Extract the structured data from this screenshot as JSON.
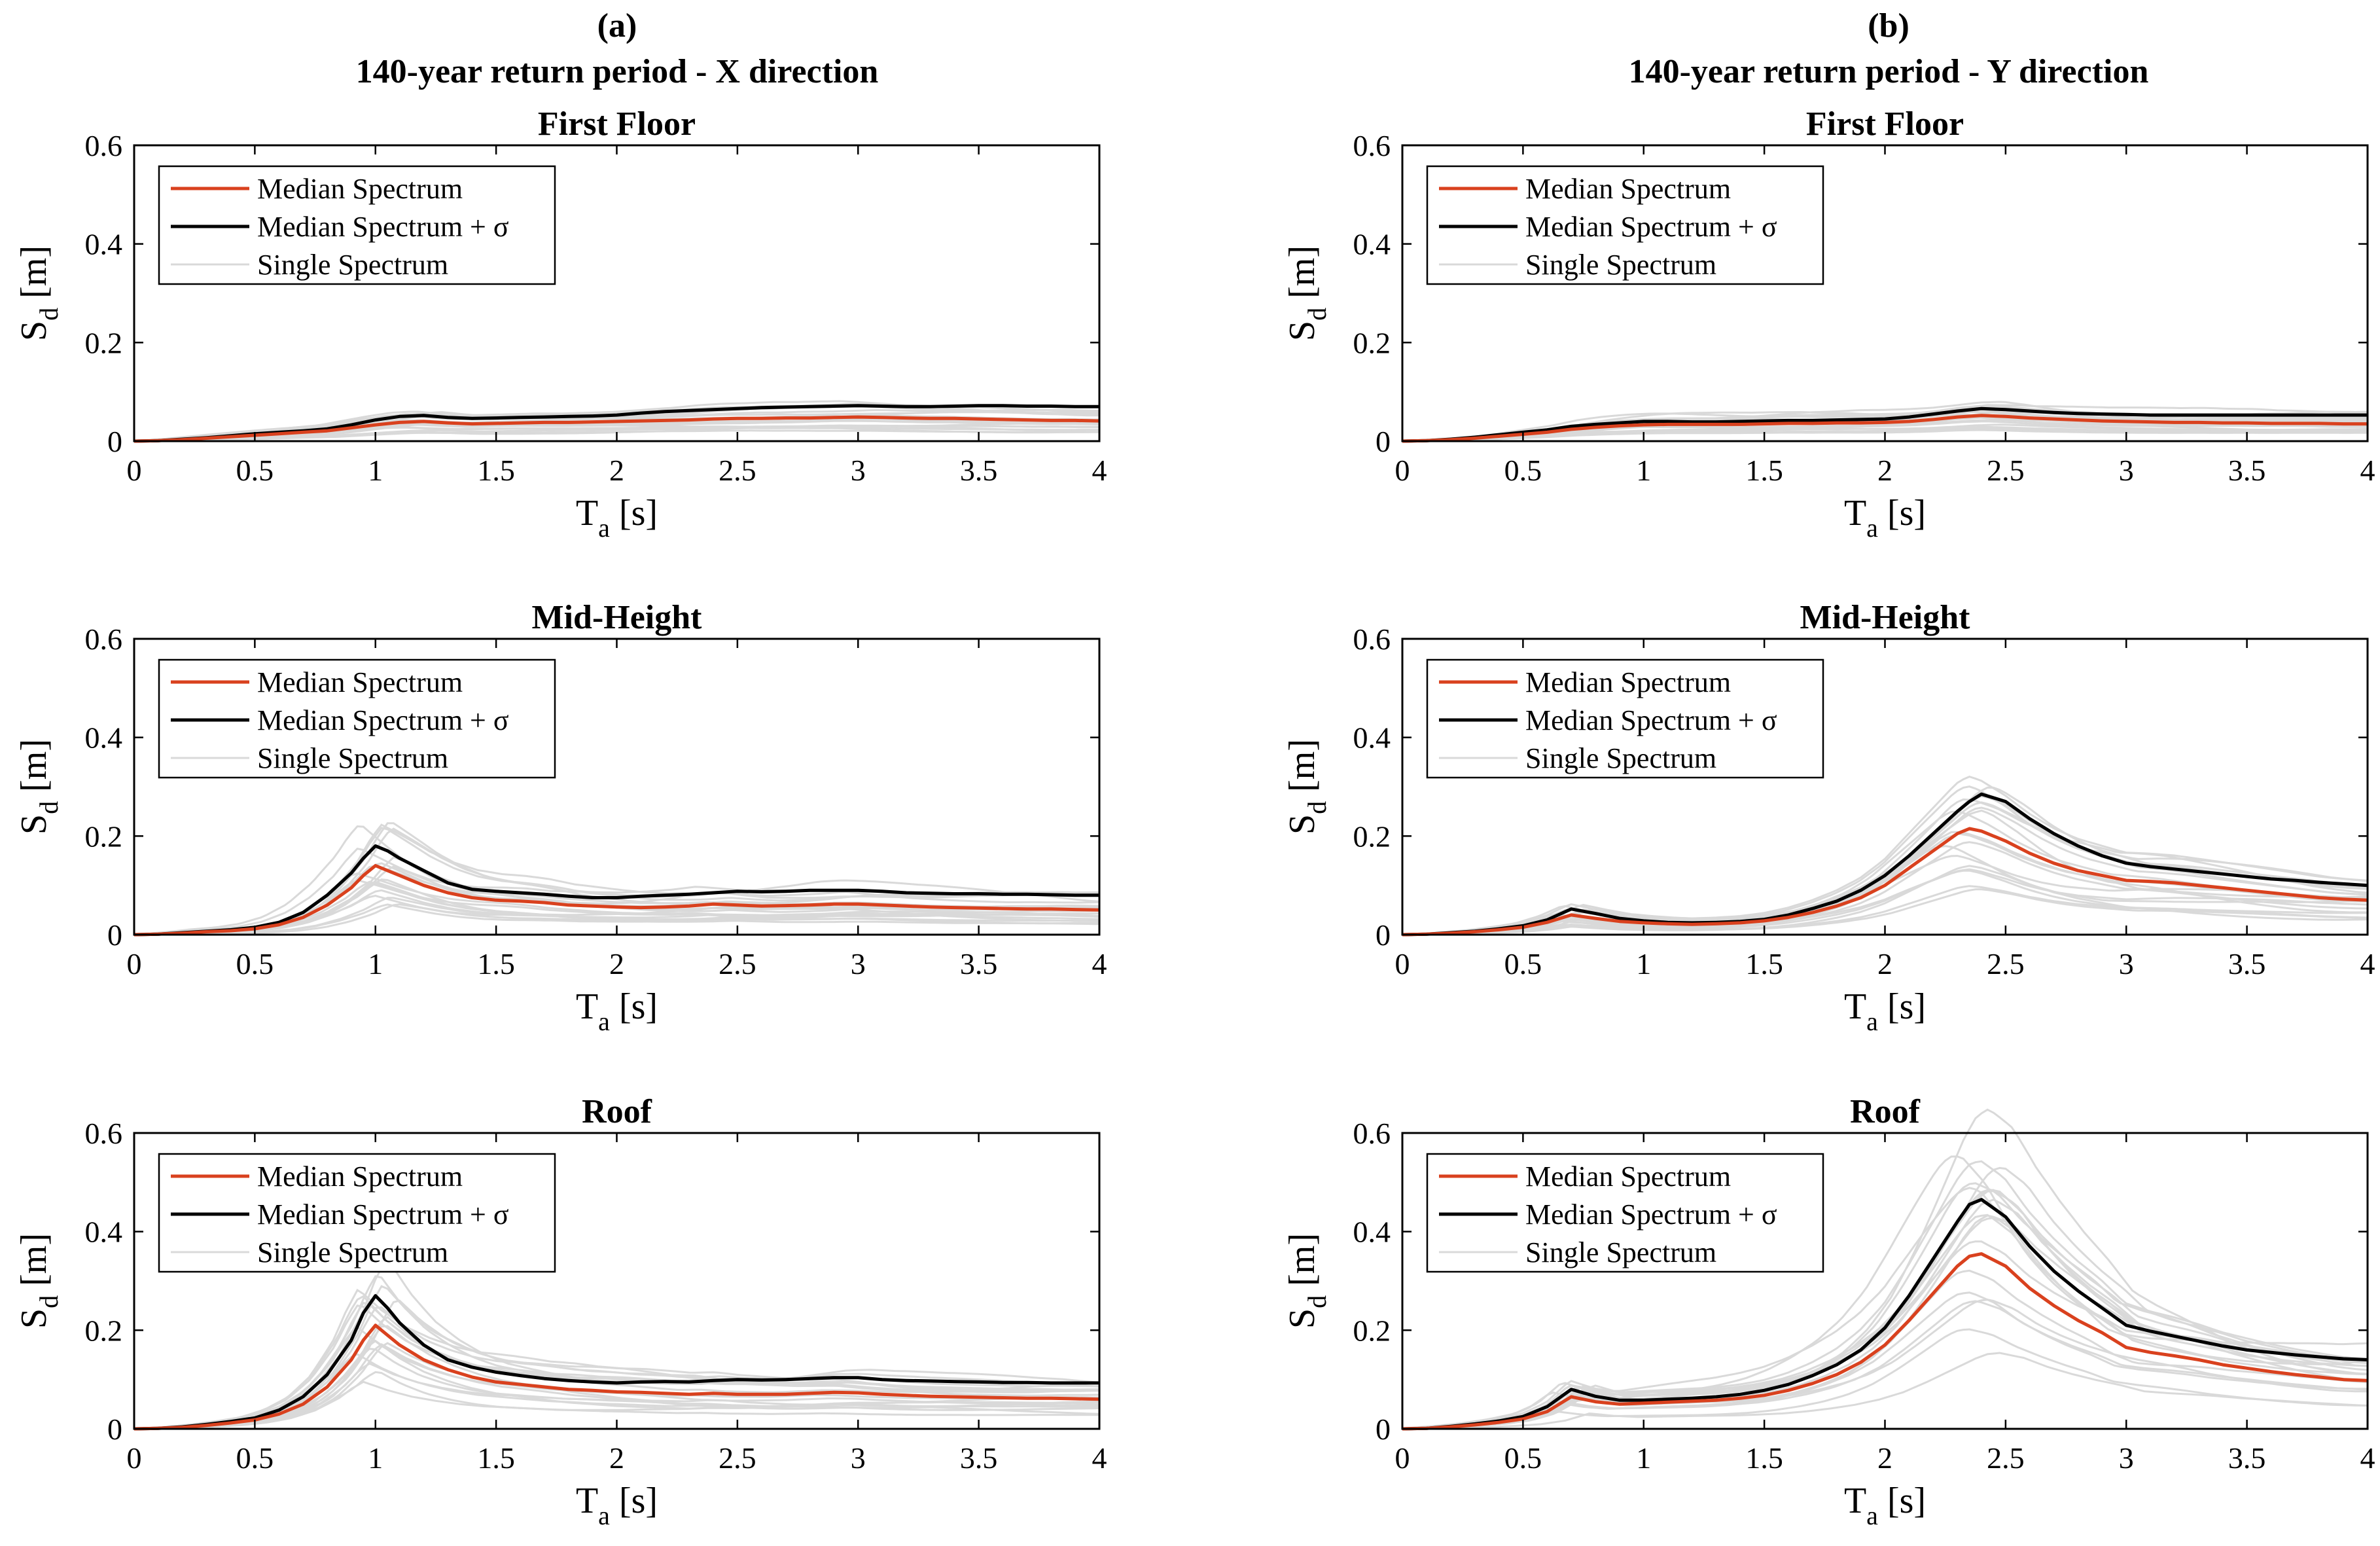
{
  "figure": {
    "columns": [
      {
        "label": "(a)",
        "title": "140-year return period - X direction"
      },
      {
        "label": "(b)",
        "title": "140-year return period - Y direction"
      }
    ],
    "colors": {
      "median": "#d9411e",
      "median_plus_sigma": "#000000",
      "single": "#d9d9d9",
      "axes": "#000000"
    }
  },
  "chart_data": [
    {
      "type": "line",
      "id": "x-first-floor",
      "column": "(a)",
      "title": "First Floor",
      "xlabel": "T",
      "xlabel_sub": "a",
      "xlabel_unit": "[s]",
      "ylabel": "S",
      "ylabel_sub": "d",
      "ylabel_unit": "[m]",
      "xlim": [
        0,
        4
      ],
      "ylim": [
        0,
        0.6
      ],
      "xticks": [
        "0",
        "0.5",
        "1",
        "1.5",
        "2",
        "2.5",
        "3",
        "3.5",
        "4"
      ],
      "yticks": [
        "0",
        "0.2",
        "0.4",
        "0.6"
      ],
      "legend": [
        "Median Spectrum",
        "Median Spectrum + σ",
        "Single Spectrum"
      ],
      "legend_position": "top-left",
      "x": [
        0,
        0.1,
        0.2,
        0.3,
        0.4,
        0.5,
        0.6,
        0.7,
        0.8,
        0.9,
        1.0,
        1.1,
        1.2,
        1.3,
        1.4,
        1.5,
        1.6,
        1.7,
        1.8,
        1.9,
        2.0,
        2.1,
        2.2,
        2.3,
        2.4,
        2.5,
        2.6,
        2.7,
        2.8,
        2.9,
        3.0,
        3.1,
        3.2,
        3.3,
        3.4,
        3.5,
        3.6,
        3.7,
        3.8,
        3.9,
        4.0
      ],
      "series": [
        {
          "name": "Median Spectrum",
          "values": [
            0,
            0.001,
            0.003,
            0.006,
            0.009,
            0.012,
            0.015,
            0.018,
            0.021,
            0.027,
            0.033,
            0.038,
            0.04,
            0.037,
            0.035,
            0.036,
            0.037,
            0.038,
            0.038,
            0.039,
            0.04,
            0.041,
            0.042,
            0.043,
            0.045,
            0.046,
            0.046,
            0.047,
            0.047,
            0.048,
            0.049,
            0.048,
            0.047,
            0.046,
            0.046,
            0.045,
            0.044,
            0.043,
            0.042,
            0.042,
            0.041
          ]
        },
        {
          "name": "Median Spectrum + σ",
          "values": [
            0,
            0.001,
            0.004,
            0.007,
            0.011,
            0.015,
            0.018,
            0.021,
            0.025,
            0.033,
            0.043,
            0.05,
            0.052,
            0.048,
            0.046,
            0.047,
            0.048,
            0.049,
            0.05,
            0.051,
            0.053,
            0.057,
            0.06,
            0.062,
            0.064,
            0.066,
            0.068,
            0.069,
            0.07,
            0.071,
            0.072,
            0.071,
            0.07,
            0.07,
            0.071,
            0.072,
            0.072,
            0.071,
            0.071,
            0.07,
            0.07
          ]
        }
      ],
      "single_spectra_count": 20
    },
    {
      "type": "line",
      "id": "x-mid-height",
      "column": "(a)",
      "title": "Mid-Height",
      "xlabel": "T",
      "xlabel_sub": "a",
      "xlabel_unit": "[s]",
      "ylabel": "S",
      "ylabel_sub": "d",
      "ylabel_unit": "[m]",
      "xlim": [
        0,
        4
      ],
      "ylim": [
        0,
        0.6
      ],
      "xticks": [
        "0",
        "0.5",
        "1",
        "1.5",
        "2",
        "2.5",
        "3",
        "3.5",
        "4"
      ],
      "yticks": [
        "0",
        "0.2",
        "0.4",
        "0.6"
      ],
      "legend": [
        "Median Spectrum",
        "Median Spectrum + σ",
        "Single Spectrum"
      ],
      "legend_position": "top-left",
      "x": [
        0,
        0.1,
        0.2,
        0.3,
        0.4,
        0.5,
        0.6,
        0.7,
        0.8,
        0.9,
        0.95,
        1.0,
        1.05,
        1.1,
        1.2,
        1.3,
        1.4,
        1.5,
        1.6,
        1.7,
        1.8,
        1.9,
        2.0,
        2.1,
        2.2,
        2.3,
        2.4,
        2.5,
        2.6,
        2.7,
        2.8,
        2.9,
        3.0,
        3.1,
        3.2,
        3.3,
        3.4,
        3.5,
        3.6,
        3.7,
        3.8,
        3.9,
        4.0
      ],
      "series": [
        {
          "name": "Median Spectrum",
          "values": [
            0,
            0.001,
            0.003,
            0.006,
            0.008,
            0.012,
            0.02,
            0.035,
            0.06,
            0.095,
            0.12,
            0.14,
            0.13,
            0.12,
            0.1,
            0.085,
            0.075,
            0.07,
            0.068,
            0.065,
            0.06,
            0.058,
            0.056,
            0.055,
            0.056,
            0.058,
            0.062,
            0.06,
            0.058,
            0.059,
            0.06,
            0.062,
            0.062,
            0.06,
            0.058,
            0.056,
            0.055,
            0.054,
            0.053,
            0.052,
            0.052,
            0.051,
            0.05
          ]
        },
        {
          "name": "Median Spectrum + σ",
          "values": [
            0,
            0.001,
            0.004,
            0.007,
            0.01,
            0.015,
            0.025,
            0.045,
            0.08,
            0.125,
            0.155,
            0.18,
            0.17,
            0.155,
            0.13,
            0.105,
            0.092,
            0.088,
            0.085,
            0.082,
            0.078,
            0.075,
            0.075,
            0.078,
            0.08,
            0.082,
            0.085,
            0.088,
            0.087,
            0.088,
            0.09,
            0.09,
            0.09,
            0.088,
            0.085,
            0.084,
            0.083,
            0.083,
            0.082,
            0.082,
            0.081,
            0.08,
            0.08
          ]
        }
      ],
      "single_spectra_count": 20
    },
    {
      "type": "line",
      "id": "x-roof",
      "column": "(a)",
      "title": "Roof",
      "xlabel": "T",
      "xlabel_sub": "a",
      "xlabel_unit": "[s]",
      "ylabel": "S",
      "ylabel_sub": "d",
      "ylabel_unit": "[m]",
      "xlim": [
        0,
        4
      ],
      "ylim": [
        0,
        0.6
      ],
      "xticks": [
        "0",
        "0.5",
        "1",
        "1.5",
        "2",
        "2.5",
        "3",
        "3.5",
        "4"
      ],
      "yticks": [
        "0",
        "0.2",
        "0.4",
        "0.6"
      ],
      "legend": [
        "Median Spectrum",
        "Median Spectrum + σ",
        "Single Spectrum"
      ],
      "legend_position": "top-left",
      "x": [
        0,
        0.1,
        0.2,
        0.3,
        0.4,
        0.5,
        0.6,
        0.7,
        0.8,
        0.9,
        0.95,
        1.0,
        1.05,
        1.1,
        1.2,
        1.3,
        1.4,
        1.5,
        1.6,
        1.7,
        1.8,
        1.9,
        2.0,
        2.1,
        2.2,
        2.3,
        2.4,
        2.5,
        2.6,
        2.7,
        2.8,
        2.9,
        3.0,
        3.1,
        3.2,
        3.3,
        3.4,
        3.5,
        3.6,
        3.7,
        3.8,
        3.9,
        4.0
      ],
      "series": [
        {
          "name": "Median Spectrum",
          "values": [
            0,
            0.001,
            0.003,
            0.007,
            0.012,
            0.018,
            0.03,
            0.05,
            0.085,
            0.14,
            0.18,
            0.21,
            0.19,
            0.17,
            0.14,
            0.12,
            0.105,
            0.095,
            0.09,
            0.085,
            0.08,
            0.078,
            0.075,
            0.074,
            0.072,
            0.07,
            0.072,
            0.07,
            0.07,
            0.07,
            0.072,
            0.074,
            0.073,
            0.07,
            0.068,
            0.066,
            0.065,
            0.064,
            0.063,
            0.062,
            0.062,
            0.061,
            0.06
          ]
        },
        {
          "name": "Median Spectrum + σ",
          "values": [
            0,
            0.001,
            0.004,
            0.009,
            0.015,
            0.022,
            0.038,
            0.065,
            0.11,
            0.18,
            0.235,
            0.27,
            0.245,
            0.215,
            0.17,
            0.14,
            0.125,
            0.115,
            0.108,
            0.102,
            0.098,
            0.095,
            0.093,
            0.095,
            0.096,
            0.095,
            0.098,
            0.1,
            0.099,
            0.1,
            0.102,
            0.104,
            0.104,
            0.1,
            0.098,
            0.097,
            0.096,
            0.095,
            0.094,
            0.094,
            0.093,
            0.093,
            0.093
          ]
        }
      ],
      "single_spectra_count": 20
    },
    {
      "type": "line",
      "id": "y-first-floor",
      "column": "(b)",
      "title": "First Floor",
      "xlabel": "T",
      "xlabel_sub": "a",
      "xlabel_unit": "[s]",
      "ylabel": "S",
      "ylabel_sub": "d",
      "ylabel_unit": "[m]",
      "xlim": [
        0,
        4
      ],
      "ylim": [
        0,
        0.6
      ],
      "xticks": [
        "0",
        "0.5",
        "1",
        "1.5",
        "2",
        "2.5",
        "3",
        "3.5",
        "4"
      ],
      "yticks": [
        "0",
        "0.2",
        "0.4",
        "0.6"
      ],
      "legend": [
        "Median Spectrum",
        "Median Spectrum + σ",
        "Single Spectrum"
      ],
      "legend_position": "top-left",
      "x": [
        0,
        0.1,
        0.2,
        0.3,
        0.4,
        0.5,
        0.6,
        0.7,
        0.8,
        0.9,
        1.0,
        1.1,
        1.2,
        1.3,
        1.4,
        1.5,
        1.6,
        1.7,
        1.8,
        1.9,
        2.0,
        2.1,
        2.2,
        2.3,
        2.4,
        2.5,
        2.6,
        2.7,
        2.8,
        2.9,
        3.0,
        3.1,
        3.2,
        3.3,
        3.4,
        3.5,
        3.6,
        3.7,
        3.8,
        3.9,
        4.0
      ],
      "series": [
        {
          "name": "Median Spectrum",
          "values": [
            0,
            0.001,
            0.003,
            0.006,
            0.01,
            0.014,
            0.018,
            0.024,
            0.028,
            0.031,
            0.033,
            0.034,
            0.034,
            0.034,
            0.034,
            0.035,
            0.036,
            0.036,
            0.037,
            0.037,
            0.038,
            0.04,
            0.044,
            0.049,
            0.052,
            0.05,
            0.047,
            0.045,
            0.043,
            0.041,
            0.04,
            0.039,
            0.038,
            0.038,
            0.037,
            0.037,
            0.036,
            0.036,
            0.036,
            0.035,
            0.035
          ]
        },
        {
          "name": "Median Spectrum + σ",
          "values": [
            0,
            0.001,
            0.004,
            0.008,
            0.013,
            0.018,
            0.023,
            0.03,
            0.034,
            0.037,
            0.04,
            0.04,
            0.039,
            0.039,
            0.04,
            0.041,
            0.042,
            0.042,
            0.043,
            0.044,
            0.045,
            0.049,
            0.055,
            0.061,
            0.066,
            0.064,
            0.061,
            0.058,
            0.056,
            0.055,
            0.054,
            0.053,
            0.053,
            0.053,
            0.053,
            0.053,
            0.053,
            0.053,
            0.053,
            0.053,
            0.053
          ]
        }
      ],
      "single_spectra_count": 20
    },
    {
      "type": "line",
      "id": "y-mid-height",
      "column": "(b)",
      "title": "Mid-Height",
      "xlabel": "T",
      "xlabel_sub": "a",
      "xlabel_unit": "[s]",
      "ylabel": "S",
      "ylabel_sub": "d",
      "ylabel_unit": "[m]",
      "xlim": [
        0,
        4
      ],
      "ylim": [
        0,
        0.6
      ],
      "xticks": [
        "0",
        "0.5",
        "1",
        "1.5",
        "2",
        "2.5",
        "3",
        "3.5",
        "4"
      ],
      "yticks": [
        "0",
        "0.2",
        "0.4",
        "0.6"
      ],
      "legend": [
        "Median Spectrum",
        "Median Spectrum + σ",
        "Single Spectrum"
      ],
      "legend_position": "top-left",
      "x": [
        0,
        0.1,
        0.2,
        0.3,
        0.4,
        0.5,
        0.6,
        0.7,
        0.8,
        0.9,
        1.0,
        1.1,
        1.2,
        1.3,
        1.4,
        1.5,
        1.6,
        1.7,
        1.8,
        1.9,
        2.0,
        2.1,
        2.2,
        2.3,
        2.35,
        2.4,
        2.5,
        2.6,
        2.7,
        2.8,
        2.9,
        3.0,
        3.1,
        3.2,
        3.3,
        3.4,
        3.5,
        3.6,
        3.7,
        3.8,
        3.9,
        4.0
      ],
      "series": [
        {
          "name": "Median Spectrum",
          "values": [
            0,
            0.001,
            0.003,
            0.006,
            0.01,
            0.015,
            0.025,
            0.04,
            0.033,
            0.027,
            0.024,
            0.022,
            0.021,
            0.022,
            0.024,
            0.028,
            0.035,
            0.045,
            0.058,
            0.075,
            0.1,
            0.135,
            0.17,
            0.205,
            0.215,
            0.21,
            0.19,
            0.165,
            0.145,
            0.13,
            0.12,
            0.11,
            0.108,
            0.105,
            0.1,
            0.095,
            0.09,
            0.085,
            0.08,
            0.075,
            0.072,
            0.07
          ]
        },
        {
          "name": "Median Spectrum + σ",
          "values": [
            0,
            0.001,
            0.004,
            0.007,
            0.012,
            0.018,
            0.03,
            0.052,
            0.043,
            0.033,
            0.028,
            0.025,
            0.024,
            0.025,
            0.027,
            0.031,
            0.04,
            0.053,
            0.068,
            0.09,
            0.12,
            0.16,
            0.205,
            0.25,
            0.27,
            0.285,
            0.27,
            0.235,
            0.205,
            0.18,
            0.16,
            0.145,
            0.138,
            0.133,
            0.128,
            0.123,
            0.118,
            0.113,
            0.11,
            0.106,
            0.103,
            0.1
          ]
        }
      ],
      "single_spectra_count": 20
    },
    {
      "type": "line",
      "id": "y-roof",
      "column": "(b)",
      "title": "Roof",
      "xlabel": "T",
      "xlabel_sub": "a",
      "xlabel_unit": "[s]",
      "ylabel": "S",
      "ylabel_sub": "d",
      "ylabel_unit": "[m]",
      "xlim": [
        0,
        4
      ],
      "ylim": [
        0,
        0.6
      ],
      "xticks": [
        "0",
        "0.5",
        "1",
        "1.5",
        "2",
        "2.5",
        "3",
        "3.5",
        "4"
      ],
      "yticks": [
        "0",
        "0.2",
        "0.4",
        "0.6"
      ],
      "legend": [
        "Median Spectrum",
        "Median Spectrum + σ",
        "Single Spectrum"
      ],
      "legend_position": "top-left",
      "x": [
        0,
        0.1,
        0.2,
        0.3,
        0.4,
        0.5,
        0.6,
        0.7,
        0.8,
        0.9,
        1.0,
        1.1,
        1.2,
        1.3,
        1.4,
        1.5,
        1.6,
        1.7,
        1.8,
        1.9,
        2.0,
        2.1,
        2.2,
        2.3,
        2.35,
        2.4,
        2.5,
        2.6,
        2.7,
        2.8,
        2.9,
        3.0,
        3.1,
        3.2,
        3.3,
        3.4,
        3.5,
        3.6,
        3.7,
        3.8,
        3.9,
        4.0
      ],
      "series": [
        {
          "name": "Median Spectrum",
          "values": [
            0,
            0.001,
            0.004,
            0.008,
            0.013,
            0.02,
            0.035,
            0.065,
            0.055,
            0.05,
            0.052,
            0.054,
            0.056,
            0.058,
            0.062,
            0.068,
            0.078,
            0.092,
            0.11,
            0.135,
            0.17,
            0.22,
            0.275,
            0.33,
            0.35,
            0.355,
            0.33,
            0.285,
            0.25,
            0.22,
            0.195,
            0.165,
            0.155,
            0.148,
            0.14,
            0.13,
            0.123,
            0.116,
            0.11,
            0.105,
            0.1,
            0.098
          ]
        },
        {
          "name": "Median Spectrum + σ",
          "values": [
            0,
            0.001,
            0.005,
            0.01,
            0.016,
            0.025,
            0.045,
            0.08,
            0.066,
            0.058,
            0.058,
            0.06,
            0.062,
            0.065,
            0.07,
            0.078,
            0.09,
            0.108,
            0.13,
            0.16,
            0.205,
            0.27,
            0.345,
            0.42,
            0.455,
            0.465,
            0.43,
            0.37,
            0.32,
            0.28,
            0.245,
            0.21,
            0.198,
            0.188,
            0.178,
            0.168,
            0.16,
            0.155,
            0.15,
            0.146,
            0.142,
            0.14
          ]
        }
      ],
      "single_spectra_count": 20
    }
  ]
}
